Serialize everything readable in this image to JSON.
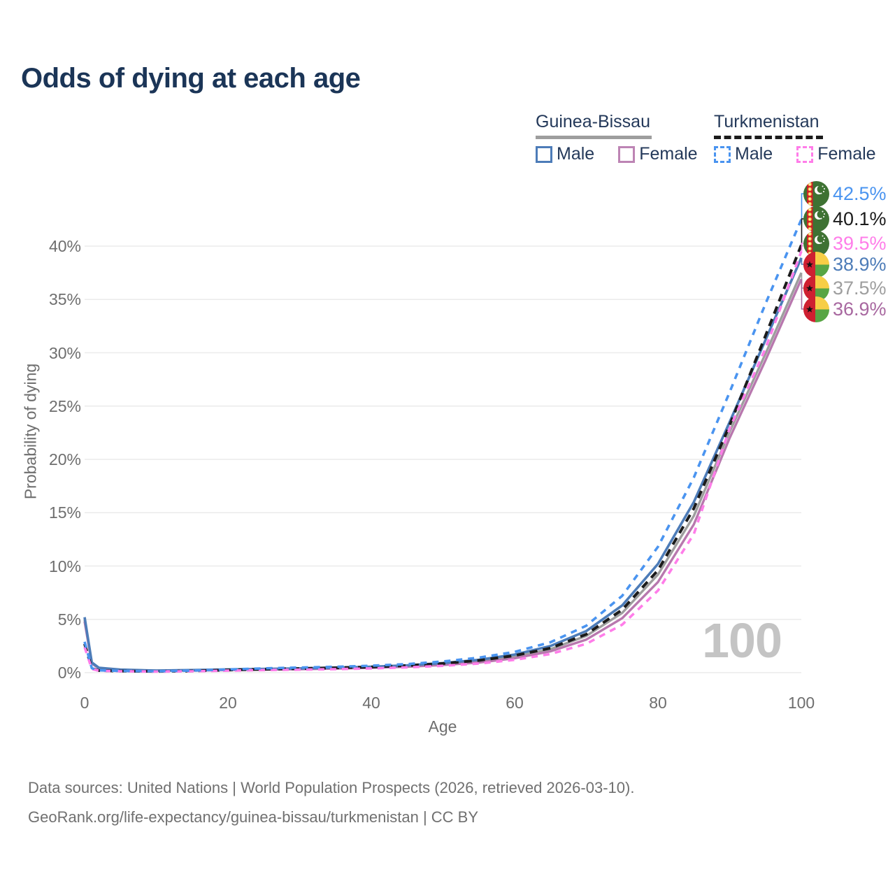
{
  "title": "Odds of dying at each age",
  "legend": {
    "groups": [
      {
        "country": "Guinea-Bissau",
        "line_style": "solid",
        "line_color": "#9e9e9e",
        "items": [
          {
            "label": "Male",
            "color": "#4d7cb8",
            "dashed": false
          },
          {
            "label": "Female",
            "color": "#bd84b4",
            "dashed": false
          }
        ]
      },
      {
        "country": "Turkmenistan",
        "line_style": "dashed",
        "line_color": "#1b1b1b",
        "items": [
          {
            "label": "Male",
            "color": "#4a94f0",
            "dashed": true
          },
          {
            "label": "Female",
            "color": "#ff7de9",
            "dashed": true
          }
        ]
      }
    ]
  },
  "watermark": "100",
  "footer": {
    "line1": "Data sources: United Nations | World Population Prospects (2026, retrieved 2026-03-10).",
    "line2": "GeoRank.org/life-expectancy/guinea-bissau/turkmenistan | CC BY"
  },
  "chart_data": {
    "type": "line",
    "title": "Odds of dying at each age",
    "xlabel": "Age",
    "ylabel": "Probability of dying",
    "xlim": [
      0,
      100
    ],
    "ylim_percent": [
      0,
      44
    ],
    "grid": "horizontal",
    "x_ticks": [
      "0",
      "20",
      "40",
      "60",
      "80",
      "100"
    ],
    "y_ticks": [
      "0%",
      "5%",
      "10%",
      "15%",
      "20%",
      "25%",
      "30%",
      "35%",
      "40%"
    ],
    "ages": [
      0,
      1,
      2,
      5,
      10,
      15,
      20,
      25,
      30,
      35,
      40,
      45,
      50,
      55,
      60,
      65,
      70,
      75,
      80,
      85,
      90,
      95,
      100
    ],
    "series": [
      {
        "id": "guinea-bissau-both",
        "name": "Guinea-Bissau Both sexes",
        "country": "Guinea-Bissau",
        "sex": "Both",
        "color": "#9e9e9e",
        "dashed": false,
        "width": 3.4,
        "values": [
          5.0,
          0.9,
          0.42,
          0.26,
          0.19,
          0.22,
          0.27,
          0.31,
          0.36,
          0.42,
          0.5,
          0.62,
          0.8,
          1.08,
          1.5,
          2.2,
          3.45,
          5.6,
          9.2,
          14.7,
          22.6,
          29.9,
          37.5
        ]
      },
      {
        "id": "guinea-bissau-female",
        "name": "Guinea-Bissau Female",
        "country": "Guinea-Bissau",
        "sex": "Female",
        "color": "#b878ae",
        "dashed": false,
        "width": 3.4,
        "values": [
          4.8,
          0.85,
          0.4,
          0.25,
          0.18,
          0.2,
          0.24,
          0.28,
          0.32,
          0.38,
          0.45,
          0.56,
          0.72,
          0.95,
          1.35,
          2.0,
          3.1,
          5.1,
          8.5,
          13.9,
          22.0,
          29.3,
          36.9
        ]
      },
      {
        "id": "guinea-bissau-male",
        "name": "Guinea-Bissau Male",
        "country": "Guinea-Bissau",
        "sex": "Male",
        "color": "#4d7cb8",
        "dashed": false,
        "width": 3.6,
        "values": [
          5.2,
          0.95,
          0.45,
          0.28,
          0.2,
          0.24,
          0.3,
          0.35,
          0.4,
          0.47,
          0.55,
          0.68,
          0.9,
          1.2,
          1.7,
          2.5,
          3.9,
          6.3,
          10.2,
          16.0,
          23.5,
          31.2,
          38.9
        ]
      },
      {
        "id": "turkmenistan-both",
        "name": "Turkmenistan Both sexes",
        "country": "Turkmenistan",
        "sex": "Both",
        "color": "#1b1b1b",
        "dashed": true,
        "dash": "11 8",
        "width": 4,
        "values": [
          2.7,
          0.38,
          0.2,
          0.15,
          0.12,
          0.16,
          0.25,
          0.32,
          0.38,
          0.45,
          0.53,
          0.66,
          0.86,
          1.15,
          1.6,
          2.3,
          3.6,
          5.9,
          9.6,
          15.4,
          23.2,
          31.6,
          40.1
        ]
      },
      {
        "id": "turkmenistan-female",
        "name": "Turkmenistan Female",
        "country": "Turkmenistan",
        "sex": "Female",
        "color": "#ff7de9",
        "dashed": true,
        "dash": "9 8",
        "width": 3.6,
        "values": [
          2.4,
          0.34,
          0.18,
          0.13,
          0.1,
          0.13,
          0.19,
          0.24,
          0.28,
          0.33,
          0.4,
          0.5,
          0.64,
          0.85,
          1.2,
          1.75,
          2.7,
          4.5,
          7.7,
          13.0,
          22.9,
          30.4,
          39.5
        ]
      },
      {
        "id": "turkmenistan-male",
        "name": "Turkmenistan Male",
        "country": "Turkmenistan",
        "sex": "Male",
        "color": "#4a94f0",
        "dashed": true,
        "dash": "9 8",
        "width": 3.6,
        "values": [
          2.9,
          0.42,
          0.22,
          0.16,
          0.13,
          0.19,
          0.3,
          0.4,
          0.48,
          0.55,
          0.65,
          0.8,
          1.05,
          1.4,
          1.95,
          2.85,
          4.4,
          7.2,
          11.8,
          18.3,
          26.3,
          34.6,
          42.5
        ]
      }
    ],
    "end_labels": [
      {
        "text": "42.5%",
        "value": 42.5,
        "color": "#4a94f0",
        "flag": "turkmenistan",
        "series": "turkmenistan-male"
      },
      {
        "text": "40.1%",
        "value": 40.1,
        "color": "#1b1b1b",
        "flag": "turkmenistan",
        "series": "turkmenistan-both"
      },
      {
        "text": "39.5%",
        "value": 39.5,
        "color": "#ff7de9",
        "flag": "turkmenistan",
        "series": "turkmenistan-female"
      },
      {
        "text": "38.9%",
        "value": 38.9,
        "color": "#4d7cb8",
        "flag": "guinea-bissau",
        "series": "guinea-bissau-male"
      },
      {
        "text": "37.5%",
        "value": 37.5,
        "color": "#9e9e9e",
        "flag": "guinea-bissau",
        "series": "guinea-bissau-both"
      },
      {
        "text": "36.9%",
        "value": 36.9,
        "color": "#a868a0",
        "flag": "guinea-bissau",
        "series": "guinea-bissau-female"
      }
    ],
    "legend_position": "top-right"
  }
}
